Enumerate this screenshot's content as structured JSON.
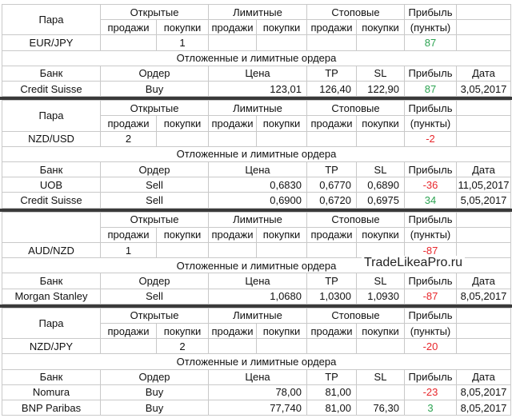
{
  "blocks": [
    {
      "header": {
        "pair": "Пара",
        "open": "Открытые",
        "limit": "Лимитные",
        "stop": "Стоповые",
        "profit": "Прибыль",
        "sell_1": "продажи",
        "buy_1": "покупки",
        "sell_2": "продажи",
        "buy_2": "покупки",
        "sell_3": "продажи",
        "buy_3": "покупки",
        "points": "(пункты)"
      },
      "position": {
        "pair": "EUR/JPY",
        "open_buy": 1,
        "profit": 87
      },
      "section": "Отложенные и лимитные ордера",
      "orders_header": {
        "bank": "Банк",
        "order": "Ордер",
        "price": "Цена",
        "tp": "TP",
        "sl": "SL",
        "profit": "Прибыль",
        "date": "Дата"
      },
      "orders": [
        {
          "bank": "Credit Suisse",
          "order": "Buy",
          "price": "123,01",
          "tp": "126,40",
          "sl": "122,90",
          "profit": 87,
          "date": "3,05,2017"
        }
      ]
    },
    {
      "header": {
        "pair": "Пара",
        "open": "Открытые",
        "limit": "Лимитные",
        "stop": "Стоповые",
        "profit": "Прибыль",
        "sell_1": "продажи",
        "buy_1": "покупки",
        "sell_2": "продажи",
        "buy_2": "покупки",
        "sell_3": "продажи",
        "buy_3": "покупки",
        "points": "(пункты)"
      },
      "position": {
        "pair": "NZD/USD",
        "open_sell": 2,
        "profit": -2
      },
      "section": "Отложенные и лимитные ордера",
      "orders_header": {
        "bank": "Банк",
        "order": "Ордер",
        "price": "Цена",
        "tp": "TP",
        "sl": "SL",
        "profit": "Прибыль",
        "date": "Дата"
      },
      "orders": [
        {
          "bank": "UOB",
          "order": "Sell",
          "price": "0,6830",
          "tp": "0,6770",
          "sl": "0,6890",
          "profit": -36,
          "date": "11,05,2017"
        },
        {
          "bank": "Credit Suisse",
          "order": "Sell",
          "price": "0,6900",
          "tp": "0,6720",
          "sl": "0,6975",
          "profit": 34,
          "date": "5,05,2017"
        }
      ]
    },
    {
      "header": {
        "open": "Открытые",
        "limit": "Лимитные",
        "stop": "Стоповые",
        "profit": "Прибыль",
        "sell_1": "продажи",
        "buy_1": "покупки",
        "sell_2": "продажи",
        "buy_2": "покупки",
        "sell_3": "продажи",
        "buy_3": "покупки",
        "points": "(пункты)"
      },
      "position": {
        "pair": "AUD/NZD",
        "open_sell": 1,
        "profit": -87
      },
      "section": "Отложенные и лимитные ордера",
      "watermark": "TradeLikeaPro.ru",
      "orders_header": {
        "bank": "Банк",
        "order": "Ордер",
        "price": "Цена",
        "tp": "TP",
        "sl": "SL",
        "profit": "Прибыль",
        "date": "Дата"
      },
      "orders": [
        {
          "bank": "Morgan Stanley",
          "order": "Sell",
          "price": "1,0680",
          "tp": "1,0300",
          "sl": "1,0930",
          "profit": -87,
          "date": "8,05,2017"
        }
      ]
    },
    {
      "header": {
        "pair": "Пара",
        "open": "Открытые",
        "limit": "Лимитные",
        "stop": "Стоповые",
        "profit": "Прибыль",
        "sell_1": "продажи",
        "buy_1": "покупки",
        "sell_2": "продажи",
        "buy_2": "покупки",
        "sell_3": "продажи",
        "buy_3": "покупки",
        "points": "(пункты)"
      },
      "position": {
        "pair": "NZD/JPY",
        "open_buy": 2,
        "profit": -20
      },
      "section": "Отложенные и лимитные ордера",
      "orders_header": {
        "bank": "Банк",
        "order": "Ордер",
        "price": "Цена",
        "tp": "TP",
        "sl": "SL",
        "profit": "Прибыль",
        "date": "Дата"
      },
      "orders": [
        {
          "bank": "Nomura",
          "order": "Buy",
          "price": "78,00",
          "tp": "81,00",
          "profit": -23,
          "date": "8,05,2017"
        },
        {
          "bank": "BNP Paribas",
          "order": "Buy",
          "price": "77,740",
          "tp": "81,00",
          "sl": "76,30",
          "profit": 3,
          "date": "8,05,2017"
        }
      ]
    }
  ]
}
